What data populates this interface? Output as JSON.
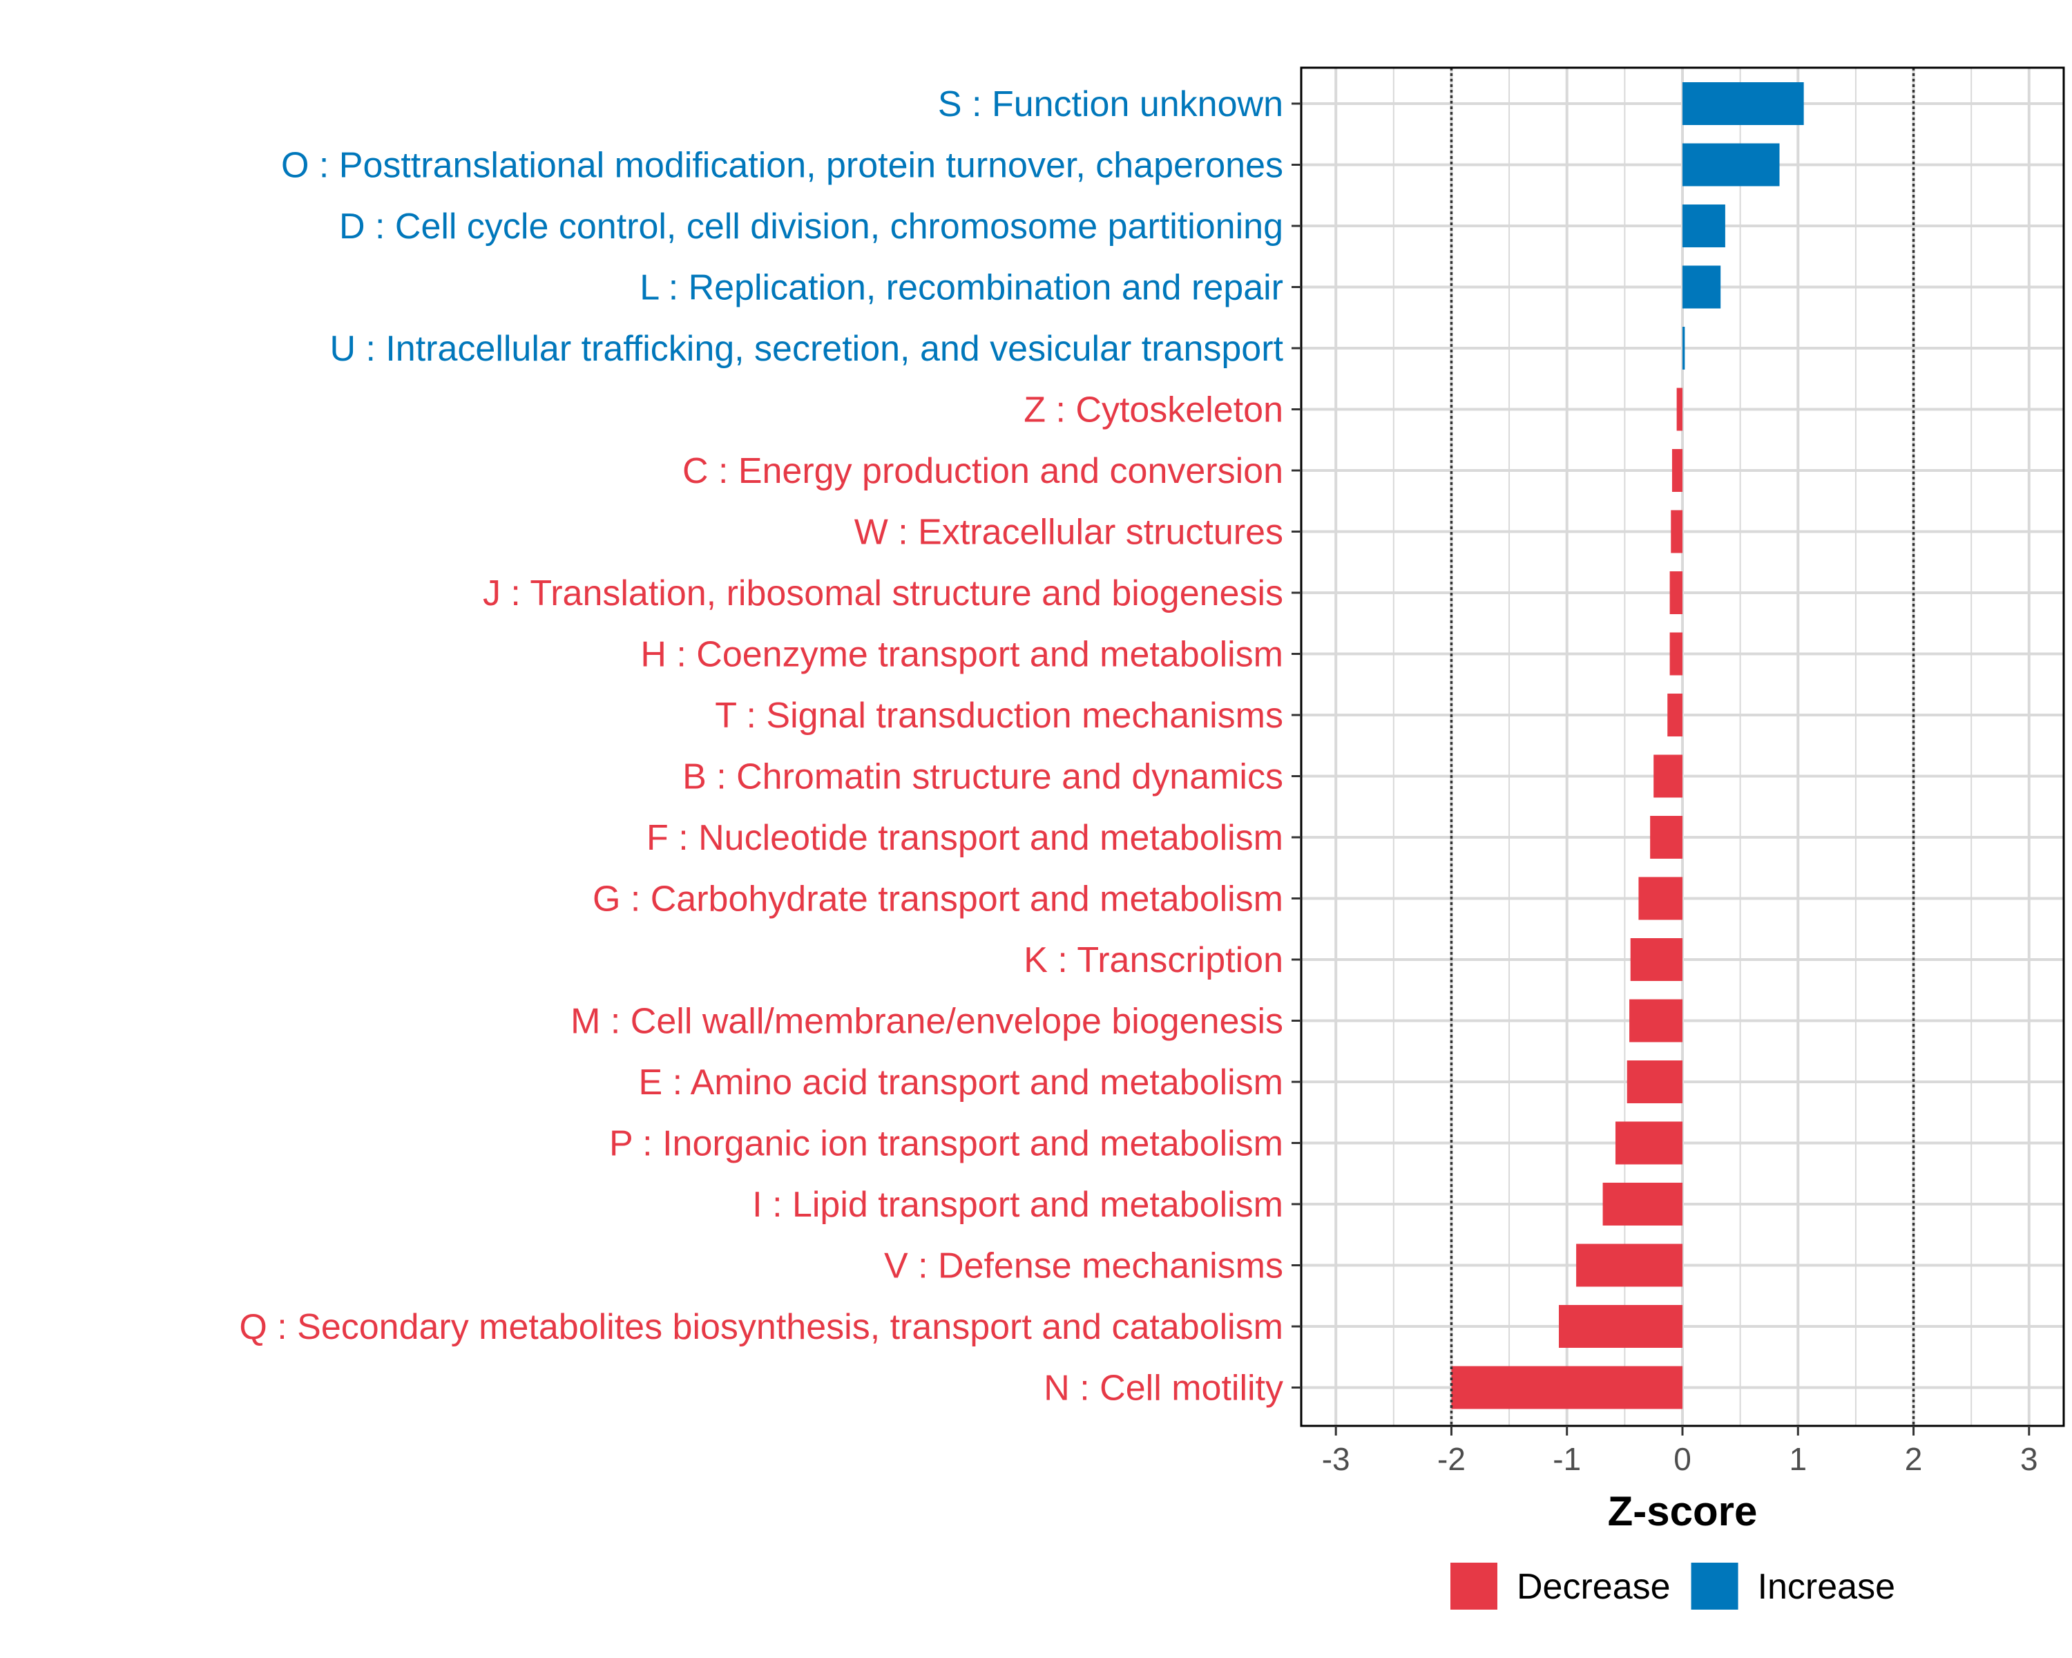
{
  "chart_data": {
    "type": "bar",
    "orientation": "horizontal",
    "xlabel": "Z-score",
    "ylabel": "",
    "xlim": [
      -3.3,
      3.3
    ],
    "x_ticks": [
      -3,
      -2,
      -1,
      0,
      1,
      2,
      3
    ],
    "threshold_lines": [
      -2,
      2
    ],
    "grid": true,
    "legend_position": "bottom",
    "colors": {
      "Decrease": "#E63946",
      "Increase": "#0077BB"
    },
    "legend": [
      {
        "name": "Decrease",
        "color": "#E63946"
      },
      {
        "name": "Increase",
        "color": "#0077BB"
      }
    ],
    "categories": [
      "S : Function unknown",
      "O : Posttranslational modification, protein turnover, chaperones",
      "D : Cell cycle control, cell division, chromosome partitioning",
      "L : Replication, recombination and repair",
      "U : Intracellular trafficking, secretion, and vesicular transport",
      "Z : Cytoskeleton",
      "C : Energy production and conversion",
      "W : Extracellular structures",
      "J : Translation, ribosomal structure and biogenesis",
      "H : Coenzyme transport and metabolism",
      "T : Signal transduction mechanisms",
      "B : Chromatin structure and dynamics",
      "F : Nucleotide transport and metabolism",
      "G : Carbohydrate transport and metabolism",
      "K : Transcription",
      "M : Cell wall/membrane/envelope biogenesis",
      "E : Amino acid transport and metabolism",
      "P : Inorganic ion transport and metabolism",
      "I : Lipid transport and metabolism",
      "V : Defense mechanisms",
      "Q : Secondary metabolites biosynthesis, transport and catabolism",
      "N : Cell motility"
    ],
    "values": [
      1.05,
      0.84,
      0.37,
      0.33,
      0.02,
      -0.05,
      -0.09,
      -0.1,
      -0.11,
      -0.11,
      -0.13,
      -0.25,
      -0.28,
      -0.38,
      -0.45,
      -0.46,
      -0.48,
      -0.58,
      -0.69,
      -0.92,
      -1.07,
      -2.0
    ],
    "groups": [
      "Increase",
      "Increase",
      "Increase",
      "Increase",
      "Increase",
      "Decrease",
      "Decrease",
      "Decrease",
      "Decrease",
      "Decrease",
      "Decrease",
      "Decrease",
      "Decrease",
      "Decrease",
      "Decrease",
      "Decrease",
      "Decrease",
      "Decrease",
      "Decrease",
      "Decrease",
      "Decrease",
      "Decrease"
    ]
  }
}
